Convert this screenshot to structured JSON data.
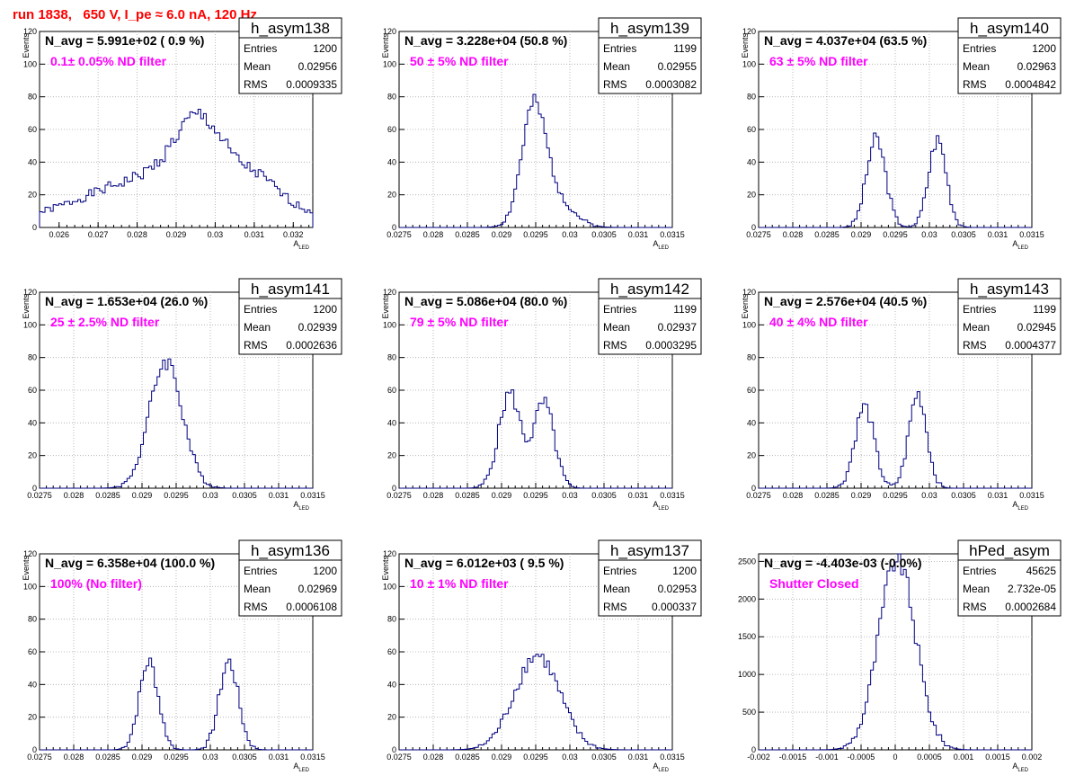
{
  "run_title": "run 1838,   650 V, I_pe ≈ 6.0 nA, 120 Hz",
  "colors": {
    "title": "#ff0000",
    "line": "#000080",
    "filter_text": "#ff00ff",
    "grid": "#aaaaaa"
  },
  "chart_data": [
    {
      "type": "histogram",
      "name": "h_asym138",
      "navg": "N_avg = 5.991e+02 ( 0.9 %)",
      "filter": "0.1± 0.05% ND filter",
      "stats": [
        [
          "Entries",
          "1200"
        ],
        [
          "Mean",
          "0.02956"
        ],
        [
          "RMS",
          "0.0009335"
        ]
      ],
      "xlabel": "A",
      "xlabel_sub": "LED",
      "ylabel": "Events",
      "xlim": [
        0.0255,
        0.0325
      ],
      "ylim": [
        0,
        120
      ],
      "xticks": [
        "0.026",
        "0.027",
        "0.028",
        "0.029",
        "0.03",
        "0.031",
        "0.032"
      ],
      "xtick_values": [
        0.026,
        0.027,
        0.028,
        0.029,
        0.03,
        0.031,
        0.032
      ],
      "yticks": [
        0,
        20,
        40,
        60,
        80,
        100,
        120
      ],
      "bins": [
        {
          "c": 0.0285,
          "w": 0.0021,
          "a": 20
        },
        {
          "c": 0.0296,
          "w": 0.0006,
          "a": 36
        },
        {
          "c": 0.0297,
          "w": 0.0021,
          "a": 15
        },
        {
          "c": 0.0311,
          "w": 0.0005,
          "a": 10
        }
      ],
      "noise_seed": 1
    },
    {
      "type": "histogram",
      "name": "h_asym139",
      "navg": "N_avg = 3.228e+04 (50.8 %)",
      "filter": "50 ± 5% ND filter",
      "stats": [
        [
          "Entries",
          "1199"
        ],
        [
          "Mean",
          "0.02955"
        ],
        [
          "RMS",
          "0.0003082"
        ]
      ],
      "xlabel": "A",
      "xlabel_sub": "LED",
      "ylabel": "Events",
      "xlim": [
        0.0275,
        0.0315
      ],
      "ylim": [
        0,
        120
      ],
      "xticks": [
        "0.0275",
        "0.028",
        "0.0285",
        "0.029",
        "0.0295",
        "0.03",
        "0.0305",
        "0.031",
        "0.0315"
      ],
      "xtick_values": [
        0.0275,
        0.028,
        0.0285,
        0.029,
        0.0295,
        0.03,
        0.0305,
        0.031,
        0.0315
      ],
      "yticks": [
        0,
        20,
        40,
        60,
        80,
        100,
        120
      ],
      "bins": [
        {
          "c": 0.02946,
          "w": 0.00017,
          "a": 60
        },
        {
          "c": 0.0297,
          "w": 0.00028,
          "a": 22
        }
      ],
      "noise_seed": 2
    },
    {
      "type": "histogram",
      "name": "h_asym140",
      "navg": "N_avg = 4.037e+04 (63.5 %)",
      "filter": "63 ± 5% ND filter",
      "stats": [
        [
          "Entries",
          "1200"
        ],
        [
          "Mean",
          "0.02963"
        ],
        [
          "RMS",
          "0.0004842"
        ]
      ],
      "xlabel": "A",
      "xlabel_sub": "LED",
      "ylabel": "Events",
      "xlim": [
        0.0275,
        0.0315
      ],
      "ylim": [
        0,
        120
      ],
      "xticks": [
        "0.0275",
        "0.028",
        "0.0285",
        "0.029",
        "0.0295",
        "0.03",
        "0.0305",
        "0.031",
        "0.0315"
      ],
      "xtick_values": [
        0.0275,
        0.028,
        0.0285,
        0.029,
        0.0295,
        0.03,
        0.0305,
        0.031,
        0.0315
      ],
      "yticks": [
        0,
        20,
        40,
        60,
        80,
        100,
        120
      ],
      "bins": [
        {
          "c": 0.02922,
          "w": 0.00014,
          "a": 54
        },
        {
          "c": 0.03012,
          "w": 0.00013,
          "a": 54
        }
      ],
      "noise_seed": 3
    },
    {
      "type": "histogram",
      "name": "h_asym141",
      "navg": "N_avg = 1.653e+04 (26.0 %)",
      "filter": "25 ± 2.5% ND filter",
      "stats": [
        [
          "Entries",
          "1200"
        ],
        [
          "Mean",
          "0.02939"
        ],
        [
          "RMS",
          "0.0002636"
        ]
      ],
      "xlabel": "A",
      "xlabel_sub": "LED",
      "ylabel": "Events",
      "xlim": [
        0.0275,
        0.0315
      ],
      "ylim": [
        0,
        120
      ],
      "xticks": [
        "0.0275",
        "0.028",
        "0.0285",
        "0.029",
        "0.0295",
        "0.03",
        "0.0305",
        "0.031",
        "0.0315"
      ],
      "xtick_values": [
        0.0275,
        0.028,
        0.0285,
        0.029,
        0.0295,
        0.03,
        0.0305,
        0.031,
        0.0315
      ],
      "yticks": [
        0,
        20,
        40,
        60,
        80,
        100,
        120
      ],
      "bins": [
        {
          "c": 0.02935,
          "w": 0.00024,
          "a": 78
        }
      ],
      "noise_seed": 4
    },
    {
      "type": "histogram",
      "name": "h_asym142",
      "navg": "N_avg = 5.086e+04 (80.0 %)",
      "filter": "79 ± 5% ND filter",
      "stats": [
        [
          "Entries",
          "1199"
        ],
        [
          "Mean",
          "0.02937"
        ],
        [
          "RMS",
          "0.0003295"
        ]
      ],
      "xlabel": "A",
      "xlabel_sub": "LED",
      "ylabel": "Events",
      "xlim": [
        0.0275,
        0.0315
      ],
      "ylim": [
        0,
        120
      ],
      "xticks": [
        "0.0275",
        "0.028",
        "0.0285",
        "0.029",
        "0.0295",
        "0.03",
        "0.0305",
        "0.031",
        "0.0315"
      ],
      "xtick_values": [
        0.0275,
        0.028,
        0.0285,
        0.029,
        0.0295,
        0.03,
        0.0305,
        0.031,
        0.0315
      ],
      "yticks": [
        0,
        20,
        40,
        60,
        80,
        100,
        120
      ],
      "bins": [
        {
          "c": 0.02912,
          "w": 0.00016,
          "a": 58
        },
        {
          "c": 0.02962,
          "w": 0.00015,
          "a": 52
        }
      ],
      "noise_seed": 5
    },
    {
      "type": "histogram",
      "name": "h_asym143",
      "navg": "N_avg = 2.576e+04 (40.5 %)",
      "filter": "40 ± 4% ND filter",
      "stats": [
        [
          "Entries",
          "1199"
        ],
        [
          "Mean",
          "0.02945"
        ],
        [
          "RMS",
          "0.0004377"
        ]
      ],
      "xlabel": "A",
      "xlabel_sub": "LED",
      "ylabel": "Events",
      "xlim": [
        0.0275,
        0.0315
      ],
      "ylim": [
        0,
        120
      ],
      "xticks": [
        "0.0275",
        "0.028",
        "0.0285",
        "0.029",
        "0.0295",
        "0.03",
        "0.0305",
        "0.031",
        "0.0315"
      ],
      "xtick_values": [
        0.0275,
        0.028,
        0.0285,
        0.029,
        0.0295,
        0.03,
        0.0305,
        0.031,
        0.0315
      ],
      "yticks": [
        0,
        20,
        40,
        60,
        80,
        100,
        120
      ],
      "bins": [
        {
          "c": 0.02905,
          "w": 0.00014,
          "a": 50
        },
        {
          "c": 0.02983,
          "w": 0.00013,
          "a": 58
        }
      ],
      "noise_seed": 6
    },
    {
      "type": "histogram",
      "name": "h_asym136",
      "navg": "N_avg = 6.358e+04 (100.0 %)",
      "filter": "100% (No filter)",
      "stats": [
        [
          "Entries",
          "1200"
        ],
        [
          "Mean",
          "0.02969"
        ],
        [
          "RMS",
          "0.0006108"
        ]
      ],
      "xlabel": "A",
      "xlabel_sub": "LED",
      "ylabel": "Events",
      "xlim": [
        0.0275,
        0.0315
      ],
      "ylim": [
        0,
        120
      ],
      "xticks": [
        "0.0275",
        "0.028",
        "0.0285",
        "0.029",
        "0.0295",
        "0.03",
        "0.0305",
        "0.031",
        "0.0315"
      ],
      "xtick_values": [
        0.0275,
        0.028,
        0.0285,
        0.029,
        0.0295,
        0.03,
        0.0305,
        0.031,
        0.0315
      ],
      "yticks": [
        0,
        20,
        40,
        60,
        80,
        100,
        120
      ],
      "bins": [
        {
          "c": 0.0291,
          "w": 0.00014,
          "a": 54
        },
        {
          "c": 0.03027,
          "w": 0.00014,
          "a": 54
        }
      ],
      "noise_seed": 7
    },
    {
      "type": "histogram",
      "name": "h_asym137",
      "navg": "N_avg = 6.012e+03 ( 9.5 %)",
      "filter": "10 ± 1% ND filter",
      "stats": [
        [
          "Entries",
          "1200"
        ],
        [
          "Mean",
          "0.02953"
        ],
        [
          "RMS",
          "0.000337"
        ]
      ],
      "xlabel": "A",
      "xlabel_sub": "LED",
      "ylabel": "Events",
      "xlim": [
        0.0275,
        0.0315
      ],
      "ylim": [
        0,
        120
      ],
      "xticks": [
        "0.0275",
        "0.028",
        "0.0285",
        "0.029",
        "0.0295",
        "0.03",
        "0.0305",
        "0.031",
        "0.0315"
      ],
      "xtick_values": [
        0.0275,
        0.028,
        0.0285,
        0.029,
        0.0295,
        0.03,
        0.0305,
        0.031,
        0.0315
      ],
      "yticks": [
        0,
        20,
        40,
        60,
        80,
        100,
        120
      ],
      "bins": [
        {
          "c": 0.02952,
          "w": 0.00033,
          "a": 58
        }
      ],
      "noise_seed": 8
    },
    {
      "type": "histogram",
      "name": "hPed_asym",
      "navg": "N_avg = -4.403e-03 (-0.0%)",
      "filter": "Shutter Closed",
      "stats": [
        [
          "Entries",
          "45625"
        ],
        [
          "Mean",
          "2.732e-05"
        ],
        [
          "RMS",
          "0.0002684"
        ]
      ],
      "xlabel": "A",
      "xlabel_sub": "LED",
      "ylabel": "",
      "xlim": [
        -0.002,
        0.002
      ],
      "ylim": [
        0,
        2600
      ],
      "xticks": [
        "-0.002",
        "-0.0015",
        "-0.001",
        "-0.0005",
        "0",
        "0.0005",
        "0.001",
        "0.0015",
        "0.002"
      ],
      "xtick_values": [
        -0.002,
        -0.0015,
        -0.001,
        -0.0005,
        0,
        0.0005,
        0.001,
        0.0015,
        0.002
      ],
      "yticks": [
        0,
        500,
        1000,
        1500,
        2000,
        2500
      ],
      "bins": [
        {
          "c": 2.73e-05,
          "w": 0.00027,
          "a": 2520
        }
      ],
      "noise_seed": 9
    }
  ]
}
